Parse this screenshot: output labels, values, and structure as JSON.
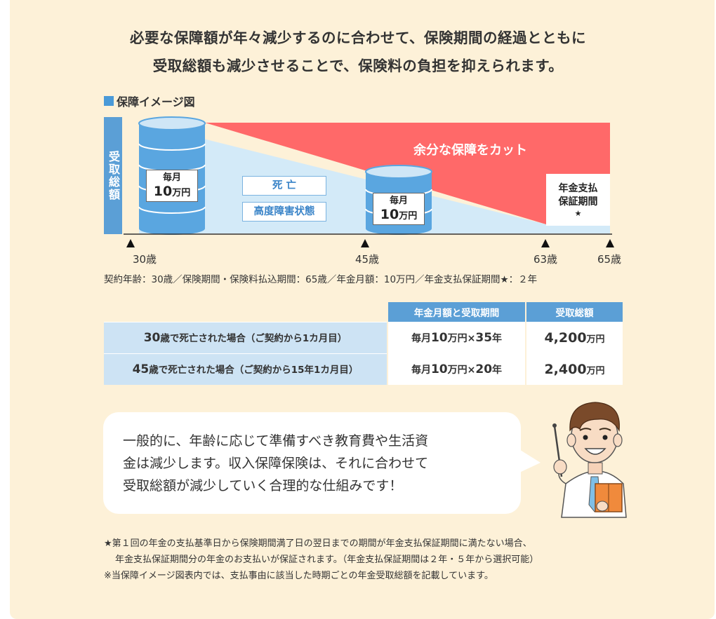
{
  "headline": {
    "line1": "必要な保障額が年々減少するのに合わせて、保険期間の経過とともに",
    "line2": "受取総額も減少させることで、保険料の負担を抑えられます。"
  },
  "diagram": {
    "title": "保障イメージ図",
    "vertical_label": "受取総額",
    "cut_label": "余分な保障をカット",
    "coin_left": {
      "small": "毎月",
      "big": "10",
      "unit": "万円"
    },
    "coin_mid": {
      "small": "毎月",
      "big": "10",
      "unit": "万円"
    },
    "cause_death": "死 亡",
    "cause_disability": "高度障害状態",
    "pension_period_line1": "年金支払",
    "pension_period_line2": "保証期間",
    "pension_period_star": "★",
    "ticks": [
      "30歳",
      "45歳",
      "63歳",
      "65歳"
    ],
    "colors": {
      "cut": "#ff6969",
      "coverage": "#d3eaf8",
      "coin": "#5aa6e0",
      "coin_top": "#cfe6f6",
      "axis_label_bg": "#5b9fd6"
    }
  },
  "contract_note": "契約年齢：30歳／保険期間・保険料払込期間：65歳／年金月額：10万円／年金支払保証期間★：２年",
  "table": {
    "headers": [
      "年金月額と受取期間",
      "受取総額"
    ],
    "rows": [
      {
        "case_num": "30",
        "case_rest": "歳で死亡された場合（ご契約から1カ月目）",
        "amt_pre": "毎月",
        "amt_num": "10",
        "amt_mid": "万円×",
        "amt_years": "35",
        "amt_post": "年",
        "total_num": "4,200",
        "total_unit": "万円"
      },
      {
        "case_num": "45",
        "case_rest": "歳で死亡された場合（ご契約から15年1カ月目）",
        "amt_pre": "毎月",
        "amt_num": "10",
        "amt_mid": "万円×",
        "amt_years": "20",
        "amt_post": "年",
        "total_num": "2,400",
        "total_unit": "万円"
      }
    ]
  },
  "bubble": {
    "line1": "一般的に、年齢に応じて準備すべき教育費や生活資",
    "line2": "金は減少します。収入保障保険は、それに合わせて",
    "line3": "受取総額が減少していく合理的な仕組みです！"
  },
  "footnotes": {
    "line1": "★第１回の年金の支払基準日から保険期間満了日の翌日までの期間が年金支払保証期間に満たない場合、",
    "line2": "年金支払保証期間分の年金のお支払いが保証されます。（年金支払保証期間は２年・５年から選択可能）",
    "line3": "※当保障イメージ図表内では、支払事由に該当した時期ごとの年金受取総額を記載しています。"
  }
}
